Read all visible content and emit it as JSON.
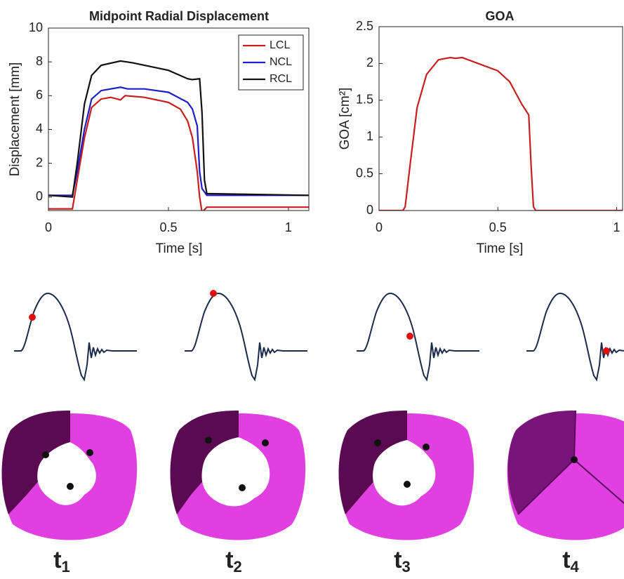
{
  "chart_data": [
    {
      "type": "line",
      "title": "Midpoint Radial Displacement",
      "xlabel": "Time [s]",
      "ylabel": "Displacement [mm]",
      "xlim": [
        0,
        1.085
      ],
      "ylim": [
        -0.8,
        10
      ],
      "xticks": [
        0,
        0.5,
        1
      ],
      "yticks": [
        0,
        2,
        4,
        6,
        8,
        10
      ],
      "box": true,
      "legend": "northeast",
      "series": [
        {
          "name": "LCL",
          "color": "#c81e1e",
          "x": [
            0,
            0.1,
            0.12,
            0.15,
            0.18,
            0.22,
            0.26,
            0.3,
            0.32,
            0.4,
            0.5,
            0.55,
            0.58,
            0.6,
            0.62,
            0.63,
            0.64,
            0.66,
            1.085
          ],
          "values": [
            -0.7,
            -0.7,
            1,
            3.5,
            5.3,
            5.8,
            5.9,
            5.75,
            6.0,
            5.9,
            5.6,
            5.2,
            4.5,
            3.5,
            1.5,
            0,
            -0.9,
            -0.6,
            -0.6
          ]
        },
        {
          "name": "NCL",
          "color": "#1e1ec8",
          "x": [
            0,
            0.1,
            0.12,
            0.15,
            0.18,
            0.22,
            0.3,
            0.33,
            0.4,
            0.5,
            0.58,
            0.6,
            0.62,
            0.63,
            0.64,
            0.66,
            1.085
          ],
          "values": [
            0.1,
            0.1,
            1.5,
            4,
            5.8,
            6.3,
            6.5,
            6.4,
            6.4,
            6.2,
            5.6,
            5.2,
            4.2,
            1.5,
            0.5,
            0.1,
            0.1
          ]
        },
        {
          "name": "RCL",
          "color": "#111111",
          "x": [
            0,
            0.1,
            0.12,
            0.15,
            0.18,
            0.22,
            0.3,
            0.35,
            0.5,
            0.58,
            0.6,
            0.63,
            0.64,
            0.65,
            0.66,
            1.085
          ],
          "values": [
            0.1,
            0.0,
            2,
            5.5,
            7.2,
            7.8,
            8.05,
            7.95,
            7.5,
            7.0,
            6.95,
            7.0,
            5,
            1,
            0.2,
            0.1
          ]
        }
      ]
    },
    {
      "type": "line",
      "title": "GOA",
      "xlabel": "Time [s]",
      "ylabel": "GOA [cm²]",
      "xlim": [
        0,
        1.025
      ],
      "ylim": [
        0,
        2.5
      ],
      "xticks": [
        0,
        0.5,
        1
      ],
      "yticks": [
        0,
        0.5,
        1,
        1.5,
        2,
        2.5
      ],
      "box": true,
      "series": [
        {
          "color": "#c81e1e",
          "x": [
            0,
            0.1,
            0.11,
            0.13,
            0.16,
            0.2,
            0.25,
            0.3,
            0.32,
            0.35,
            0.4,
            0.5,
            0.55,
            0.6,
            0.63,
            0.64,
            0.65,
            0.66,
            1.025
          ],
          "values": [
            0,
            0,
            0.05,
            0.6,
            1.4,
            1.85,
            2.05,
            2.08,
            2.07,
            2.08,
            2.02,
            1.9,
            1.75,
            1.45,
            1.3,
            0.6,
            0.05,
            0,
            0
          ]
        }
      ]
    }
  ],
  "panels": [
    {
      "label": "t",
      "sub": "1"
    },
    {
      "label": "t",
      "sub": "2"
    },
    {
      "label": "t",
      "sub": "3"
    },
    {
      "label": "t",
      "sub": "4"
    }
  ]
}
